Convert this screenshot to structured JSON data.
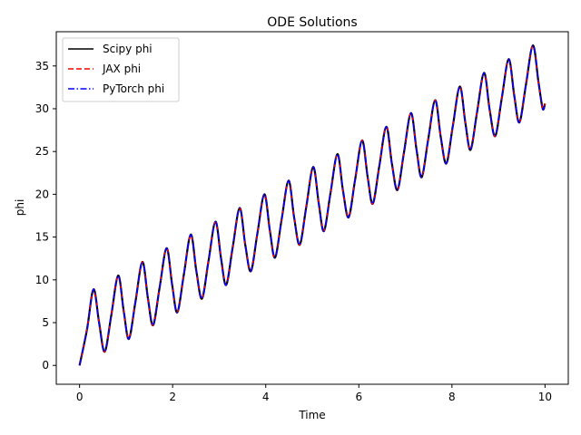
{
  "chart_data": {
    "type": "line",
    "title": "ODE Solutions",
    "xlabel": "Time",
    "ylabel": "phi",
    "xlim": [
      -0.5,
      10.5
    ],
    "ylim": [
      -2.2,
      39.0
    ],
    "xticks": [
      0,
      2,
      4,
      6,
      8,
      10
    ],
    "yticks": [
      0,
      5,
      10,
      15,
      20,
      25,
      30,
      35
    ],
    "grid": false,
    "legend_position": "top-left",
    "x": [
      0.0,
      0.16,
      0.3,
      0.42,
      0.54,
      0.68,
      0.83,
      0.95,
      1.06,
      1.2,
      1.35,
      1.47,
      1.58,
      1.72,
      1.87,
      1.99,
      2.1,
      2.24,
      2.39,
      2.51,
      2.63,
      2.77,
      2.92,
      3.04,
      3.15,
      3.29,
      3.44,
      3.56,
      3.68,
      3.82,
      3.97,
      4.09,
      4.2,
      4.34,
      4.49,
      4.61,
      4.73,
      4.87,
      5.02,
      5.14,
      5.25,
      5.39,
      5.54,
      5.66,
      5.78,
      5.92,
      6.07,
      6.19,
      6.3,
      6.44,
      6.59,
      6.71,
      6.83,
      6.97,
      7.12,
      7.24,
      7.35,
      7.49,
      7.64,
      7.76,
      7.88,
      8.02,
      8.17,
      8.29,
      8.4,
      8.54,
      8.69,
      8.81,
      8.93,
      9.07,
      9.22,
      9.34,
      9.45,
      9.59,
      9.74,
      9.86,
      9.95,
      10.0
    ],
    "y": [
      0.0,
      4.2,
      8.9,
      5.0,
      1.6,
      5.8,
      10.5,
      6.3,
      3.1,
      7.4,
      12.1,
      7.8,
      4.7,
      9.1,
      13.7,
      9.4,
      6.2,
      10.6,
      15.3,
      11.0,
      7.8,
      12.2,
      16.8,
      12.5,
      9.4,
      13.8,
      18.4,
      14.1,
      11.0,
      15.4,
      20.0,
      15.7,
      12.6,
      17.0,
      21.6,
      17.3,
      14.1,
      18.5,
      23.2,
      18.9,
      15.7,
      20.1,
      24.7,
      20.4,
      17.3,
      21.7,
      26.3,
      22.0,
      18.9,
      23.3,
      27.9,
      23.6,
      20.5,
      24.9,
      29.5,
      25.2,
      22.0,
      26.4,
      31.0,
      26.7,
      23.6,
      28.0,
      32.6,
      28.3,
      25.2,
      29.6,
      34.2,
      29.9,
      26.8,
      31.2,
      35.8,
      31.5,
      28.4,
      32.8,
      37.4,
      33.1,
      30.0,
      30.6
    ],
    "series": [
      {
        "name": "Scipy phi",
        "color": "#000000",
        "dash": "solid"
      },
      {
        "name": "JAX phi",
        "color": "#ff0000",
        "dash": "dashed"
      },
      {
        "name": "PyTorch phi",
        "color": "#0000ff",
        "dash": "dashdot"
      }
    ]
  }
}
